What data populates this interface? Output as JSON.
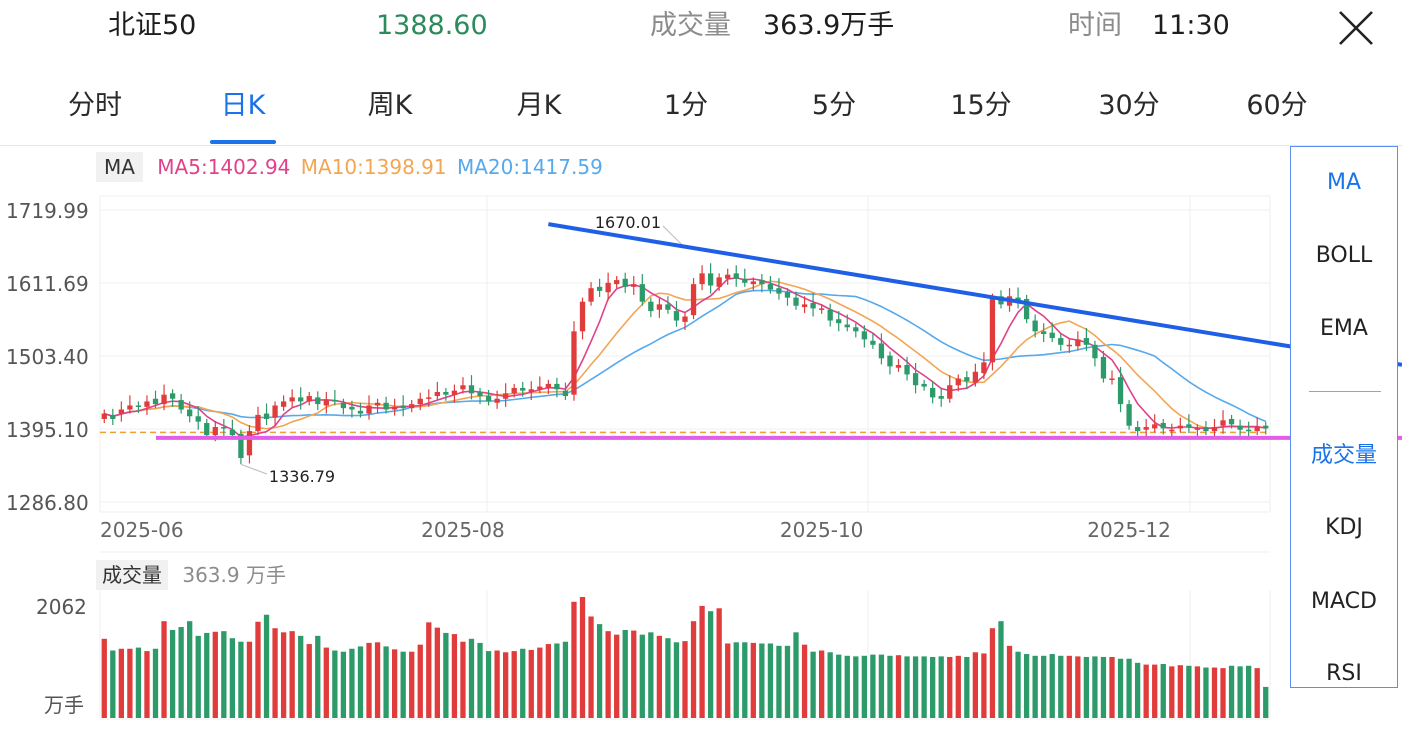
{
  "header": {
    "name": "北证50",
    "price": "1388.60",
    "volume_label": "成交量",
    "volume_value": "363.9万手",
    "time_label": "时间",
    "time_value": "11:30"
  },
  "colors": {
    "up": "#e03c3c",
    "down": "#2d9a6a",
    "ma5": "#e0418a",
    "ma10": "#f2a654",
    "ma20": "#57a9ec",
    "accent": "#1a73e8",
    "trendline": "#1f5fe6",
    "support": "#e25ee8",
    "prev_close": "#f0a030"
  },
  "tabs": [
    {
      "label": "分时",
      "active": false
    },
    {
      "label": "日K",
      "active": true
    },
    {
      "label": "周K",
      "active": false
    },
    {
      "label": "月K",
      "active": false
    },
    {
      "label": "1分",
      "active": false
    },
    {
      "label": "5分",
      "active": false
    },
    {
      "label": "15分",
      "active": false
    },
    {
      "label": "30分",
      "active": false
    },
    {
      "label": "60分",
      "active": false
    }
  ],
  "legend": {
    "tag": "MA",
    "ma5": "MA5:1402.94",
    "ma10": "MA10:1398.91",
    "ma20": "MA20:1417.59"
  },
  "volume_legend": {
    "tag": "成交量",
    "value": "363.9 万手"
  },
  "side_panel": {
    "main": [
      "MA",
      "BOLL",
      "EMA"
    ],
    "sub": [
      "成交量",
      "KDJ",
      "MACD",
      "RSI"
    ],
    "active_main": "MA",
    "active_sub": "成交量"
  },
  "chart_data": {
    "type": "candlestick",
    "y_ticks": [
      "1719.99",
      "1611.69",
      "1503.40",
      "1395.10",
      "1286.80"
    ],
    "ylim": [
      1286.8,
      1719.99
    ],
    "x_ticks": [
      "2025-06",
      "2025-08",
      "2025-10",
      "2025-12"
    ],
    "x_tick_bar_index": [
      0,
      42,
      84,
      120
    ],
    "max_label": "1670.01",
    "max_bar_index": 68,
    "min_label": "1336.79",
    "min_bar_index": 16,
    "prev_close": 1390,
    "support_level": 1382,
    "trendline": [
      {
        "bar": 52,
        "price": 1699
      },
      {
        "bar": 143,
        "price": 1509
      }
    ],
    "volume_max_label": "2062",
    "volume_unit_label": "万手",
    "volume_max": 2062,
    "closes": [
      1418,
      1410,
      1424,
      1430,
      1428,
      1436,
      1432,
      1446,
      1440,
      1424,
      1414,
      1406,
      1386,
      1398,
      1396,
      1386,
      1352,
      1392,
      1416,
      1410,
      1430,
      1436,
      1442,
      1436,
      1444,
      1432,
      1438,
      1436,
      1426,
      1424,
      1418,
      1430,
      1434,
      1424,
      1428,
      1426,
      1432,
      1440,
      1442,
      1450,
      1446,
      1452,
      1460,
      1448,
      1444,
      1436,
      1440,
      1448,
      1456,
      1452,
      1454,
      1458,
      1462,
      1454,
      1444,
      1540,
      1584,
      1604,
      1600,
      1612,
      1616,
      1606,
      1610,
      1584,
      1570,
      1580,
      1572,
      1556,
      1562,
      1610,
      1626,
      1608,
      1620,
      1624,
      1618,
      1612,
      1614,
      1610,
      1602,
      1596,
      1590,
      1578,
      1580,
      1574,
      1574,
      1556,
      1552,
      1546,
      1540,
      1528,
      1520,
      1500,
      1488,
      1490,
      1476,
      1460,
      1458,
      1442,
      1440,
      1460,
      1470,
      1466,
      1480,
      1494,
      1590,
      1580,
      1592,
      1586,
      1558,
      1540,
      1536,
      1530,
      1520,
      1520,
      1528,
      1520,
      1500,
      1470,
      1470,
      1432,
      1400,
      1392,
      1398,
      1402,
      1396,
      1394,
      1400,
      1398,
      1396,
      1392,
      1398,
      1408,
      1402,
      1394,
      1392,
      1398,
      1396
    ],
    "opens": [
      1410,
      1416,
      1418,
      1424,
      1430,
      1428,
      1440,
      1432,
      1448,
      1438,
      1424,
      1414,
      1404,
      1386,
      1398,
      1394,
      1388,
      1356,
      1392,
      1418,
      1412,
      1428,
      1436,
      1442,
      1436,
      1442,
      1430,
      1438,
      1434,
      1428,
      1422,
      1418,
      1430,
      1434,
      1424,
      1430,
      1426,
      1432,
      1440,
      1444,
      1450,
      1446,
      1454,
      1460,
      1450,
      1444,
      1434,
      1440,
      1448,
      1456,
      1450,
      1454,
      1456,
      1462,
      1452,
      1446,
      1540,
      1584,
      1606,
      1598,
      1610,
      1618,
      1606,
      1610,
      1584,
      1572,
      1580,
      1570,
      1554,
      1564,
      1610,
      1626,
      1606,
      1618,
      1626,
      1618,
      1610,
      1616,
      1610,
      1604,
      1598,
      1590,
      1576,
      1582,
      1572,
      1572,
      1558,
      1550,
      1546,
      1540,
      1526,
      1522,
      1504,
      1486,
      1490,
      1478,
      1462,
      1456,
      1444,
      1440,
      1460,
      1472,
      1464,
      1478,
      1494,
      1592,
      1578,
      1590,
      1588,
      1556,
      1540,
      1538,
      1530,
      1520,
      1518,
      1530,
      1520,
      1502,
      1470,
      1472,
      1432,
      1398,
      1394,
      1396,
      1404,
      1394,
      1396,
      1402,
      1396,
      1398,
      1392,
      1400,
      1410,
      1400,
      1394,
      1392,
      1400
    ],
    "volumes": [
      1350,
      1150,
      1180,
      1180,
      1200,
      1140,
      1180,
      1650,
      1500,
      1550,
      1650,
      1400,
      1450,
      1470,
      1480,
      1360,
      1300,
      1300,
      1640,
      1760,
      1530,
      1460,
      1480,
      1400,
      1260,
      1400,
      1200,
      1150,
      1130,
      1180,
      1220,
      1280,
      1290,
      1220,
      1170,
      1130,
      1130,
      1250,
      1630,
      1540,
      1450,
      1430,
      1300,
      1350,
      1280,
      1140,
      1150,
      1120,
      1140,
      1180,
      1160,
      1200,
      1260,
      1270,
      1300,
      1980,
      2062,
      1730,
      1600,
      1480,
      1420,
      1500,
      1490,
      1420,
      1460,
      1400,
      1360,
      1290,
      1310,
      1650,
      1910,
      1820,
      1870,
      1270,
      1290,
      1290,
      1280,
      1270,
      1270,
      1230,
      1230,
      1460,
      1250,
      1130,
      1150,
      1120,
      1080,
      1060,
      1050,
      1060,
      1080,
      1080,
      1060,
      1070,
      1050,
      1050,
      1050,
      1040,
      1050,
      1040,
      1060,
      1040,
      1120,
      1100,
      1530,
      1650,
      1230,
      1130,
      1090,
      1060,
      1060,
      1090,
      1060,
      1060,
      1050,
      1040,
      1050,
      1040,
      1040,
      1010,
      1010,
      940,
      910,
      910,
      920,
      880,
      900,
      890,
      880,
      860,
      860,
      850,
      890,
      880,
      890,
      850,
      530
    ]
  }
}
